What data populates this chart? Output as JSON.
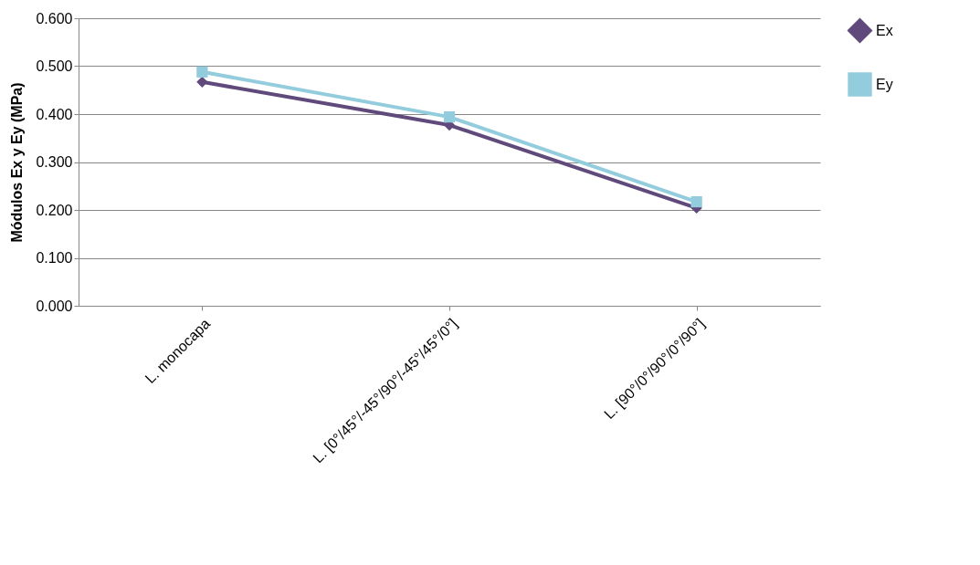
{
  "chart_data": {
    "type": "line",
    "ylabel": "Módulos Ex y Ey (MPa)",
    "categories": [
      "L. monocapa",
      "L. [0°/45°/-45°/90°/-45°/45°/0°]",
      "L. [90°/0°/90°/0°/90°]"
    ],
    "series": [
      {
        "name": "Ex",
        "color": "#604a7b",
        "marker": "diamond",
        "values": [
          0.467,
          0.377,
          0.204
        ]
      },
      {
        "name": "Ey",
        "color": "#93cddd",
        "marker": "square",
        "values": [
          0.488,
          0.394,
          0.217
        ]
      }
    ],
    "ylim": [
      0,
      0.6
    ],
    "yticks": [
      {
        "value": 0,
        "label": "0.000"
      },
      {
        "value": 0.1,
        "label": "0.100"
      },
      {
        "value": 0.2,
        "label": "0.200"
      },
      {
        "value": 0.3,
        "label": "0.300"
      },
      {
        "value": 0.4,
        "label": "0.400"
      },
      {
        "value": 0.5,
        "label": "0.500"
      },
      {
        "value": 0.6,
        "label": "0.600"
      }
    ],
    "grid": "y",
    "legend": "right",
    "line_style": "solid"
  }
}
